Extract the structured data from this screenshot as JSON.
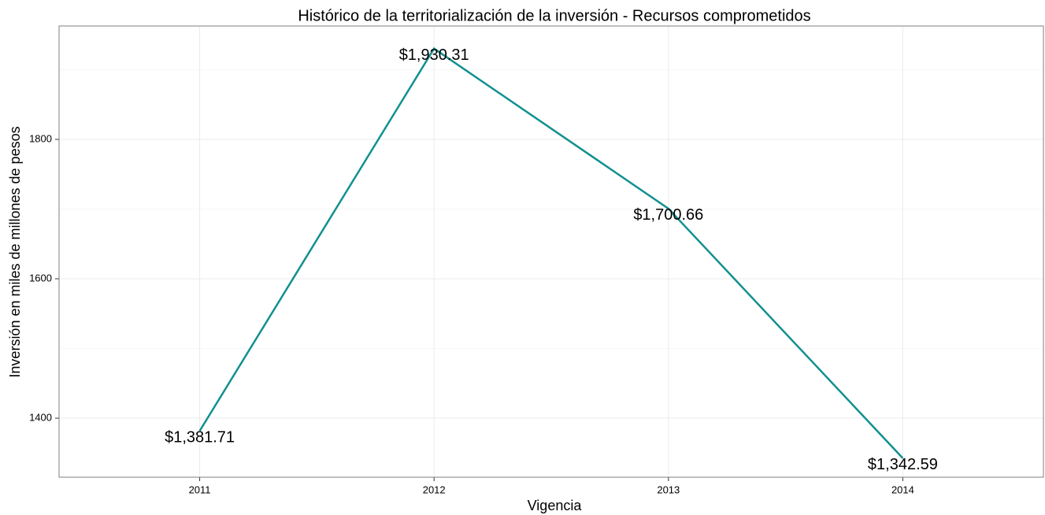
{
  "chart_data": {
    "type": "line",
    "title": "Histórico de la territorialización de la inversión - Recursos comprometidos",
    "x_label": "Vigencia",
    "y_label": "Inversión en miles de millones de pesos",
    "categories": [
      "2011",
      "2012",
      "2013",
      "2014"
    ],
    "series": [
      {
        "name": "Recursos comprometidos",
        "color": "#139090",
        "values": [
          1381.71,
          1930.31,
          1700.66,
          1342.59
        ],
        "value_labels": [
          "$1,381.71",
          "$1,930.31",
          "$1,700.66",
          "$1,342.59"
        ]
      }
    ],
    "ylim": [
      1315.3,
      1962.7
    ],
    "yticks": [
      1400,
      1600,
      1800
    ],
    "y_minor_ticks": [
      1500,
      1700,
      1900
    ],
    "grid": true
  }
}
